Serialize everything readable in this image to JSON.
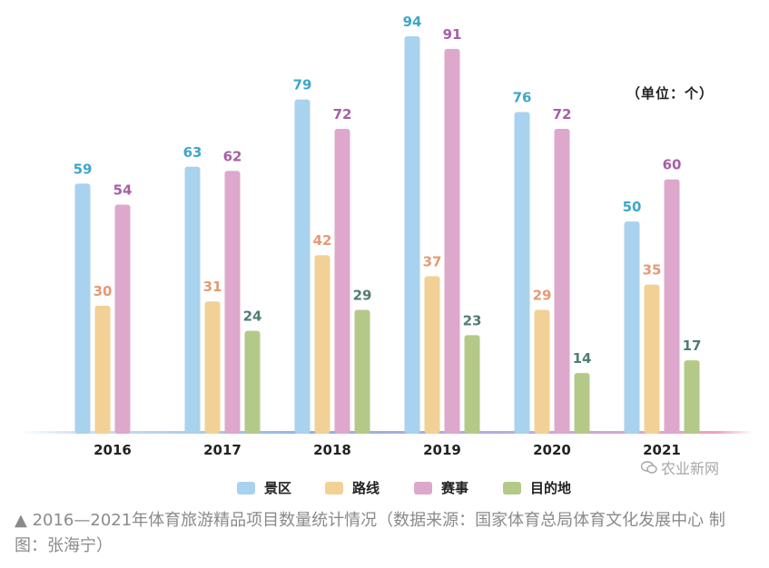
{
  "unit_label": "（单位：个）",
  "legend": [
    {
      "label": "景区",
      "color": "#a9d2ee"
    },
    {
      "label": "路线",
      "color": "#f2d196"
    },
    {
      "label": "赛事",
      "color": "#dda8cc"
    },
    {
      "label": "目的地",
      "color": "#b4c988"
    }
  ],
  "watermark": "农业新网",
  "caption": "▲ 2016—2021年体育旅游精品项目数量统计情况（数据来源：国家体育总局体育文化发展中心 制图：张海宁）",
  "chart_data": {
    "type": "bar",
    "categories": [
      "2016",
      "2017",
      "2018",
      "2019",
      "2020",
      "2021"
    ],
    "series": [
      {
        "name": "景区",
        "values": [
          59,
          63,
          79,
          94,
          76,
          50
        ],
        "color": "#a9d2ee",
        "label_color": "#3ea7c8"
      },
      {
        "name": "路线",
        "values": [
          30,
          31,
          42,
          37,
          29,
          35
        ],
        "color": "#f2d196",
        "label_color": "#e59a72"
      },
      {
        "name": "赛事",
        "values": [
          54,
          62,
          72,
          91,
          72,
          60
        ],
        "color": "#dda8cc",
        "label_color": "#a85ea5"
      },
      {
        "name": "目的地",
        "values": [
          null,
          24,
          29,
          23,
          14,
          17
        ],
        "color": "#b4c988",
        "label_color": "#4f7d74"
      }
    ],
    "ylim": [
      0,
      94
    ],
    "grid": false,
    "legend_position": "bottom"
  }
}
